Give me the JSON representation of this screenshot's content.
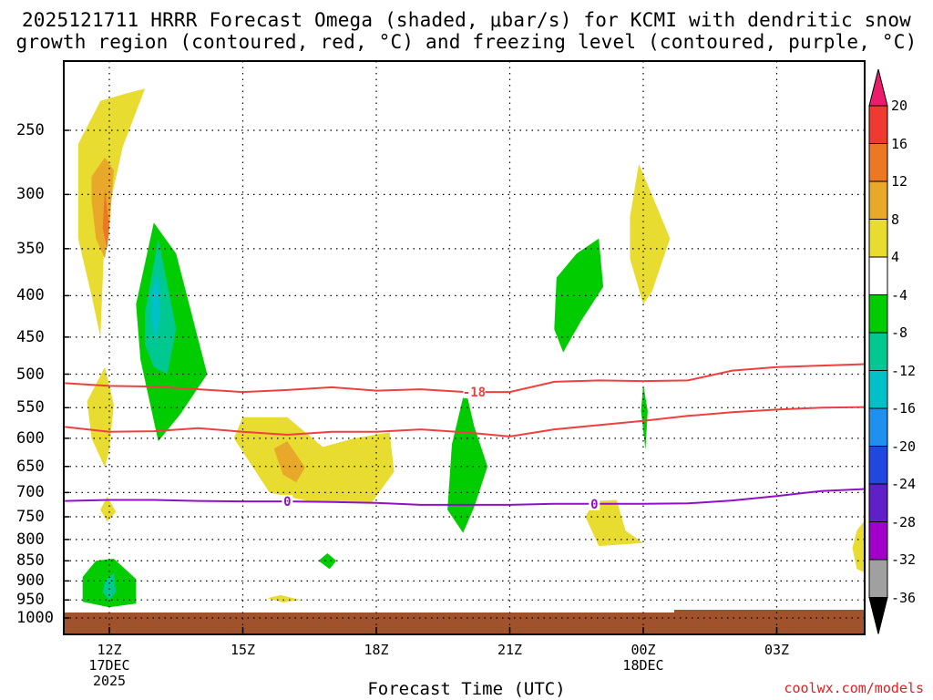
{
  "title_line1": "2025121711 HRRR Forecast Omega (shaded, μbar/s) for KCMI with dendritic snow",
  "title_line2": "growth region (contoured, red, °C) and freezing level (contoured, purple, °C)",
  "credit": "coolwx.com/models",
  "chart_data": {
    "type": "heatmap",
    "title": "2025121711 HRRR Forecast Omega (shaded, μbar/s) for KCMI with dendritic snow growth region (contoured, red, °C) and freezing level (contoured, purple, °C)",
    "xlabel": "Forecast Time (UTC)",
    "ylabel": "",
    "x_range_hours": [
      11,
      29
    ],
    "y_range_hPa": [
      1000,
      200
    ],
    "x_ticks": [
      {
        "hour": 12,
        "label": "12Z",
        "sub1": "17DEC",
        "sub2": "2025"
      },
      {
        "hour": 15,
        "label": "15Z",
        "sub1": "",
        "sub2": ""
      },
      {
        "hour": 18,
        "label": "18Z",
        "sub1": "",
        "sub2": ""
      },
      {
        "hour": 21,
        "label": "21Z",
        "sub1": "",
        "sub2": ""
      },
      {
        "hour": 24,
        "label": "00Z",
        "sub1": "18DEC",
        "sub2": ""
      },
      {
        "hour": 27,
        "label": "03Z",
        "sub1": "",
        "sub2": ""
      }
    ],
    "y_ticks": [
      "250",
      "300",
      "350",
      "400",
      "450",
      "500",
      "550",
      "600",
      "650",
      "700",
      "750",
      "800",
      "850",
      "900",
      "950",
      "1000"
    ],
    "grid": true,
    "colorbar": {
      "labels": [
        "20",
        "16",
        "12",
        "8",
        "4",
        "-4",
        "-8",
        "-12",
        "-16",
        "-20",
        "-24",
        "-28",
        "-32",
        "-36"
      ],
      "colors": [
        "#ec1c6c",
        "#ee3a30",
        "#ec7826",
        "#e8a82a",
        "#e8dc30",
        "#ffffff",
        "#00cc00",
        "#00c891",
        "#00c0c8",
        "#1e90f0",
        "#2048e0",
        "#6020c8",
        "#a000c8",
        "#a0a0a0",
        "#000000"
      ]
    },
    "ground_color": "#a0522d",
    "dgz_contour": {
      "label": "-18",
      "upper": [
        [
          11,
          513
        ],
        [
          12,
          517
        ],
        [
          13,
          518
        ],
        [
          14,
          522
        ],
        [
          15,
          526
        ],
        [
          16,
          523
        ],
        [
          17,
          519
        ],
        [
          18,
          524
        ],
        [
          19,
          522
        ],
        [
          20,
          526
        ],
        [
          21,
          526
        ],
        [
          22,
          511
        ],
        [
          23,
          509
        ],
        [
          24,
          510
        ],
        [
          25,
          509
        ],
        [
          26,
          495
        ],
        [
          27,
          490
        ],
        [
          28,
          488
        ],
        [
          29,
          486
        ]
      ],
      "lower": [
        [
          11,
          581
        ],
        [
          12,
          589
        ],
        [
          13,
          588
        ],
        [
          14,
          583
        ],
        [
          15,
          589
        ],
        [
          16,
          594
        ],
        [
          17,
          589
        ],
        [
          18,
          589
        ],
        [
          19,
          585
        ],
        [
          20,
          590
        ],
        [
          21,
          597
        ],
        [
          22,
          585
        ],
        [
          23,
          578
        ],
        [
          24,
          571
        ],
        [
          25,
          563
        ],
        [
          26,
          557
        ],
        [
          27,
          553
        ],
        [
          28,
          550
        ],
        [
          29,
          549
        ]
      ]
    },
    "freezing_level": {
      "label": "0",
      "values": [
        [
          11,
          717
        ],
        [
          12,
          715
        ],
        [
          13,
          715
        ],
        [
          14,
          717
        ],
        [
          15,
          718
        ],
        [
          16,
          718
        ],
        [
          17,
          719
        ],
        [
          18,
          721
        ],
        [
          19,
          725
        ],
        [
          20,
          725
        ],
        [
          21,
          725
        ],
        [
          22,
          723
        ],
        [
          23,
          723
        ],
        [
          24,
          723
        ],
        [
          25,
          722
        ],
        [
          26,
          716
        ],
        [
          27,
          707
        ],
        [
          28,
          697
        ],
        [
          29,
          693
        ]
      ]
    },
    "regions": [
      {
        "value": 4,
        "color": "#e8dc30",
        "points": [
          [
            11.3,
            260
          ],
          [
            11.8,
            230
          ],
          [
            12.4,
            225
          ],
          [
            12.8,
            222
          ],
          [
            12.3,
            262
          ],
          [
            11.9,
            330
          ],
          [
            11.8,
            450
          ],
          [
            11.6,
            400
          ],
          [
            11.3,
            340
          ]
        ]
      },
      {
        "value": 8,
        "color": "#e8a82a",
        "points": [
          [
            11.6,
            285
          ],
          [
            11.9,
            270
          ],
          [
            12.1,
            280
          ],
          [
            12.0,
            330
          ],
          [
            11.9,
            360
          ],
          [
            11.7,
            340
          ],
          [
            11.6,
            305
          ]
        ]
      },
      {
        "value": 12,
        "color": "#ec7826",
        "points": [
          [
            11.9,
            295
          ],
          [
            12.0,
            330
          ],
          [
            11.95,
            350
          ],
          [
            11.85,
            330
          ]
        ]
      },
      {
        "value": 4,
        "color": "#e8dc30",
        "points": [
          [
            11.5,
            540
          ],
          [
            11.9,
            490
          ],
          [
            12.1,
            545
          ],
          [
            12.0,
            620
          ],
          [
            11.9,
            652
          ],
          [
            11.6,
            600
          ]
        ]
      },
      {
        "value": 4,
        "color": "#e8dc30",
        "points": [
          [
            11.8,
            735
          ],
          [
            11.95,
            708
          ],
          [
            12.15,
            740
          ],
          [
            11.95,
            760
          ]
        ]
      },
      {
        "value": -4,
        "color": "#00cc00",
        "points": [
          [
            12.6,
            410
          ],
          [
            13.0,
            325
          ],
          [
            13.5,
            355
          ],
          [
            14.2,
            500
          ],
          [
            13.6,
            560
          ],
          [
            13.1,
            605
          ],
          [
            12.7,
            480
          ]
        ]
      },
      {
        "value": -8,
        "color": "#00c891",
        "points": [
          [
            12.8,
            420
          ],
          [
            13.1,
            340
          ],
          [
            13.5,
            440
          ],
          [
            13.3,
            500
          ],
          [
            13.0,
            490
          ],
          [
            12.8,
            460
          ]
        ]
      },
      {
        "value": -12,
        "color": "#00c0c8",
        "points": [
          [
            12.95,
            395
          ],
          [
            13.1,
            375
          ],
          [
            13.15,
            420
          ],
          [
            13.05,
            455
          ],
          [
            12.95,
            430
          ]
        ]
      },
      {
        "value": -4,
        "color": "#00cc00",
        "points": [
          [
            11.4,
            890
          ],
          [
            11.7,
            850
          ],
          [
            12.1,
            845
          ],
          [
            12.6,
            895
          ],
          [
            12.6,
            960
          ],
          [
            12.0,
            970
          ],
          [
            11.4,
            955
          ]
        ]
      },
      {
        "value": -8,
        "color": "#00c891",
        "points": [
          [
            11.9,
            900
          ],
          [
            12.1,
            880
          ],
          [
            12.15,
            930
          ],
          [
            12.0,
            950
          ],
          [
            11.85,
            930
          ]
        ]
      },
      {
        "value": 4,
        "color": "#e8dc30",
        "points": [
          [
            14.8,
            600
          ],
          [
            15.0,
            565
          ],
          [
            16.0,
            565
          ],
          [
            16.8,
            615
          ],
          [
            17.5,
            600
          ],
          [
            18.3,
            590
          ],
          [
            18.4,
            660
          ],
          [
            17.9,
            720
          ],
          [
            16.6,
            720
          ],
          [
            15.6,
            700
          ]
        ]
      },
      {
        "value": 8,
        "color": "#e8a82a",
        "points": [
          [
            15.7,
            618
          ],
          [
            16.0,
            605
          ],
          [
            16.4,
            652
          ],
          [
            16.2,
            680
          ],
          [
            15.9,
            665
          ]
        ]
      },
      {
        "value": 4,
        "color": "#e8dc30",
        "points": [
          [
            15.55,
            945
          ],
          [
            15.85,
            937
          ],
          [
            16.3,
            950
          ],
          [
            15.9,
            957
          ]
        ]
      },
      {
        "value": -4,
        "color": "#00cc00",
        "points": [
          [
            16.7,
            850
          ],
          [
            16.9,
            832
          ],
          [
            17.1,
            850
          ],
          [
            16.95,
            870
          ]
        ]
      },
      {
        "value": -4,
        "color": "#00cc00",
        "points": [
          [
            19.6,
            735
          ],
          [
            19.7,
            610
          ],
          [
            20.0,
            520
          ],
          [
            20.2,
            580
          ],
          [
            20.5,
            650
          ],
          [
            20.2,
            730
          ],
          [
            19.95,
            785
          ]
        ]
      },
      {
        "value": 4,
        "color": "#e8dc30",
        "points": [
          [
            22.7,
            750
          ],
          [
            22.9,
            717
          ],
          [
            23.4,
            715
          ],
          [
            23.6,
            780
          ],
          [
            24.0,
            808
          ],
          [
            23.0,
            815
          ]
        ]
      },
      {
        "value": -4,
        "color": "#00cc00",
        "points": [
          [
            22.0,
            440
          ],
          [
            22.05,
            380
          ],
          [
            22.5,
            355
          ],
          [
            23.0,
            340
          ],
          [
            23.1,
            390
          ],
          [
            22.6,
            430
          ],
          [
            22.2,
            470
          ]
        ]
      },
      {
        "value": 4,
        "color": "#e8dc30",
        "points": [
          [
            23.7,
            320
          ],
          [
            23.9,
            275
          ],
          [
            24.3,
            310
          ],
          [
            24.6,
            340
          ],
          [
            24.2,
            395
          ],
          [
            24.0,
            410
          ],
          [
            23.7,
            360
          ]
        ]
      },
      {
        "value": -4,
        "color": "#00cc00",
        "points": [
          [
            23.95,
            555
          ],
          [
            24.0,
            515
          ],
          [
            24.1,
            555
          ],
          [
            24.05,
            620
          ]
        ]
      },
      {
        "value": 4,
        "color": "#e8dc30",
        "points": [
          [
            28.7,
            820
          ],
          [
            28.8,
            780
          ],
          [
            29.0,
            755
          ],
          [
            29.0,
            880
          ],
          [
            28.8,
            870
          ]
        ]
      }
    ]
  }
}
